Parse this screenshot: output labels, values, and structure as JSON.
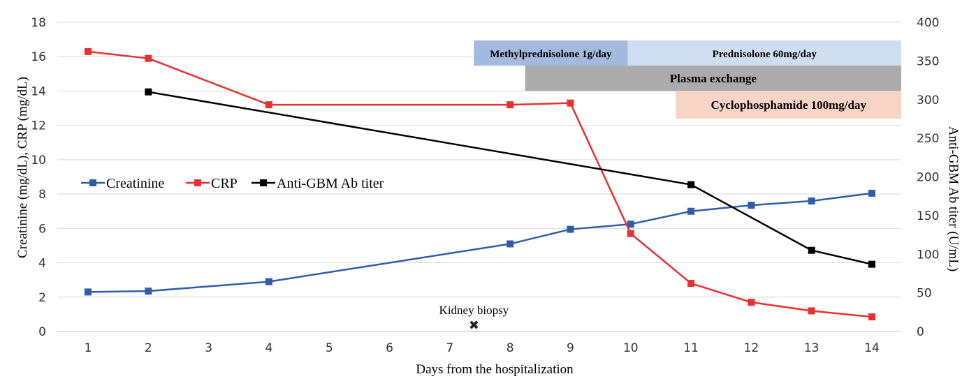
{
  "chart_data": {
    "type": "line",
    "x": [
      1,
      2,
      3,
      4,
      5,
      6,
      7,
      8,
      9,
      10,
      11,
      12,
      13,
      14
    ],
    "xlabel": "Days from the hospitalization",
    "ylabel": "Creatinine (mg/dL), CRP (mg/dL)",
    "y2label": "Anti-GBM Ab titer (U/mL)",
    "ylim": [
      0,
      18
    ],
    "y2lim": [
      0,
      400
    ],
    "yticks": [
      0,
      2,
      4,
      6,
      8,
      10,
      12,
      14,
      16,
      18
    ],
    "y2ticks": [
      0,
      50,
      100,
      150,
      200,
      250,
      300,
      350,
      400
    ],
    "grid": true,
    "legend_position": "middle-left",
    "series": [
      {
        "name": "Creatinine",
        "axis": "left",
        "color": "#2F5DAA",
        "points": [
          [
            1,
            2.3
          ],
          [
            2,
            2.35
          ],
          [
            4,
            2.9
          ],
          [
            8,
            5.1
          ],
          [
            9,
            5.95
          ],
          [
            10,
            6.25
          ],
          [
            11,
            7.0
          ],
          [
            12,
            7.35
          ],
          [
            13,
            7.6
          ],
          [
            14,
            8.05
          ]
        ]
      },
      {
        "name": "CRP",
        "axis": "left",
        "color": "#E8312F",
        "points": [
          [
            1,
            16.3
          ],
          [
            2,
            15.9
          ],
          [
            4,
            13.2
          ],
          [
            8,
            13.2
          ],
          [
            9,
            13.3
          ],
          [
            10,
            5.7
          ],
          [
            11,
            2.8
          ],
          [
            12,
            1.7
          ],
          [
            13,
            1.2
          ],
          [
            14,
            0.85
          ]
        ]
      },
      {
        "name": "Anti-GBM Ab titer",
        "axis": "right",
        "color": "#000000",
        "points": [
          [
            2,
            310
          ],
          [
            11,
            190
          ],
          [
            13,
            105
          ],
          [
            14,
            87
          ]
        ]
      }
    ],
    "bands": [
      {
        "label": "Methylprednisolone 1g/day",
        "start": 7.4,
        "end": 9.95,
        "row": 0,
        "color": "#A3B9DD"
      },
      {
        "label": "Prednisolone 60mg/day",
        "start": 9.95,
        "end": 14.5,
        "row": 0,
        "color": "#CFDDF0"
      },
      {
        "label": "Plasma exchange",
        "start": 8.25,
        "end": 14.5,
        "row": 1,
        "color": "#ABABAB"
      },
      {
        "label": "Cyclophosphamide 100mg/day",
        "start": 10.75,
        "end": 14.5,
        "row": 2,
        "color": "#F8D4C6"
      }
    ],
    "annotations": [
      {
        "label": "Kidney biopsy",
        "x": 7.4,
        "marker": "✖"
      }
    ]
  }
}
